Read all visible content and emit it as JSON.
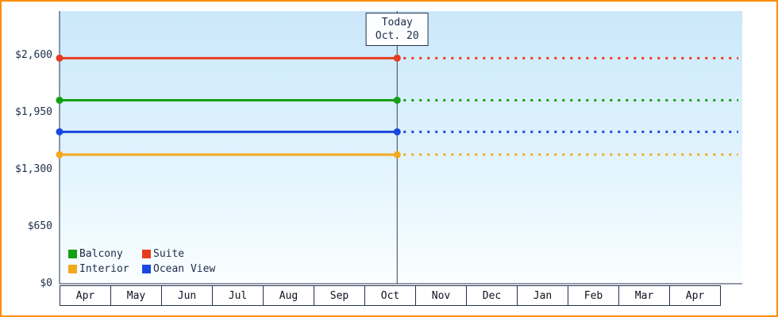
{
  "chart_data": {
    "type": "line",
    "x_months": [
      "Apr",
      "May",
      "Jun",
      "Jul",
      "Aug",
      "Sep",
      "Oct",
      "Nov",
      "Dec",
      "Jan",
      "Feb",
      "Mar",
      "Apr"
    ],
    "y_ticks": [
      {
        "value": 0,
        "label": "$0"
      },
      {
        "value": 650,
        "label": "$650"
      },
      {
        "value": 1300,
        "label": "$1,300"
      },
      {
        "value": 1950,
        "label": "$1,950"
      },
      {
        "value": 2600,
        "label": "$2,600"
      }
    ],
    "ylim": [
      0,
      2600
    ],
    "grid": false,
    "today": {
      "title": "Today",
      "date_label": "Oct. 20",
      "month_index": 6,
      "day": 20,
      "days_in_month": 31
    },
    "series": [
      {
        "name": "Suite",
        "color": "#e63c1e",
        "value": 2570,
        "style": "solid-then-dotted"
      },
      {
        "name": "Balcony",
        "color": "#12a012",
        "value": 2090,
        "style": "solid-then-dotted"
      },
      {
        "name": "Ocean View",
        "color": "#1947e0",
        "value": 1730,
        "style": "solid-then-dotted"
      },
      {
        "name": "Interior",
        "color": "#f4a81d",
        "value": 1470,
        "style": "solid-then-dotted"
      }
    ],
    "legend": {
      "position": "bottom-left",
      "entries": [
        {
          "name": "Balcony",
          "color": "#12a012"
        },
        {
          "name": "Suite",
          "color": "#e63c1e"
        },
        {
          "name": "Interior",
          "color": "#f4a81d"
        },
        {
          "name": "Ocean View",
          "color": "#1947e0"
        }
      ]
    }
  },
  "frame": {
    "border_color": "#ff8c00"
  }
}
